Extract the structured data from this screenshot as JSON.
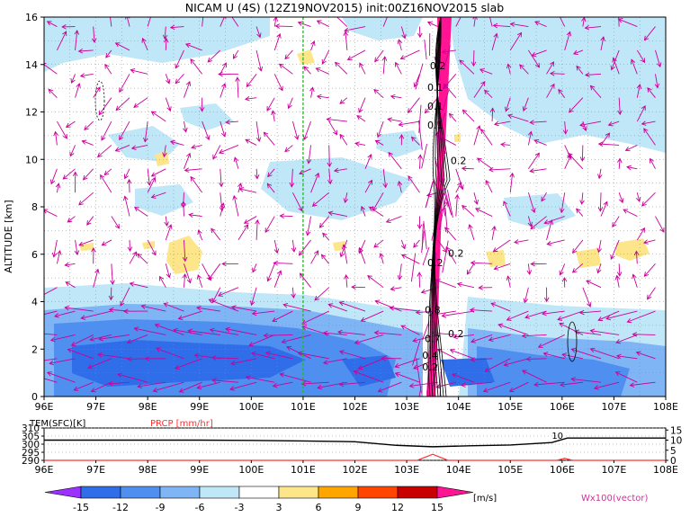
{
  "title": "NICAM U (4S) (12Z19NOV2015) init:00Z16NOV2015 slab",
  "chart_data": [
    {
      "type": "heatmap",
      "xlabel": "",
      "ylabel": "ALTITUDE [km]",
      "xlim": [
        96,
        108
      ],
      "ylim": [
        0,
        16
      ],
      "x_ticks": [
        "96E",
        "97E",
        "98E",
        "99E",
        "100E",
        "101E",
        "102E",
        "103E",
        "104E",
        "105E",
        "106E",
        "107E",
        "108E"
      ],
      "y_ticks": [
        "0",
        "2",
        "4",
        "6",
        "8",
        "10",
        "12",
        "14",
        "16"
      ],
      "grid": true,
      "marker_line_x": 101,
      "contour_labels": [
        {
          "text": "0.2",
          "x": 103.6,
          "y": 13.8
        },
        {
          "text": "0.1",
          "x": 103.55,
          "y": 12.9
        },
        {
          "text": "0.1",
          "x": 103.55,
          "y": 12.1
        },
        {
          "text": "0.1",
          "x": 103.55,
          "y": 11.3
        },
        {
          "text": "0.2",
          "x": 104.0,
          "y": 9.8
        },
        {
          "text": "0.2",
          "x": 103.55,
          "y": 5.5
        },
        {
          "text": "0.2",
          "x": 103.95,
          "y": 5.9
        },
        {
          "text": "0.8",
          "x": 103.5,
          "y": 3.5
        },
        {
          "text": "0.7",
          "x": 103.5,
          "y": 2.3
        },
        {
          "text": "0.2",
          "x": 103.95,
          "y": 2.5
        },
        {
          "text": "0.4",
          "x": 103.45,
          "y": 1.6
        },
        {
          "text": "0.2",
          "x": 103.45,
          "y": 1.1
        }
      ]
    },
    {
      "type": "line",
      "series": [
        {
          "name": "TEM(SFC)[K]",
          "color": "#000000",
          "x": [
            96,
            99,
            100,
            101,
            102,
            102.8,
            103.5,
            104.2,
            105,
            105.8,
            106.1,
            108
          ],
          "values": [
            302.5,
            302.5,
            302.3,
            302.0,
            301.5,
            299.3,
            298.4,
            299.0,
            299.5,
            301.0,
            303.8,
            303.8
          ]
        },
        {
          "name": "PRCP [mm/hr]",
          "color": "#ff3030",
          "x": [
            96,
            103.2,
            103.5,
            103.8,
            105.9,
            106.05,
            106.2,
            108
          ],
          "values": [
            0,
            0,
            3,
            0,
            0,
            1,
            0,
            0
          ]
        }
      ],
      "xlim": [
        96,
        108
      ],
      "left_ticks": [
        "290",
        "295",
        "300",
        "305",
        "310"
      ],
      "left_ylim": [
        290,
        310
      ],
      "right_ticks": [
        "0",
        "5",
        "10",
        "15"
      ],
      "right_ylim": [
        0,
        16
      ],
      "x_ticks": [
        "96E",
        "97E",
        "98E",
        "99E",
        "100E",
        "101E",
        "102E",
        "103E",
        "104E",
        "105E",
        "106E",
        "107E",
        "108E"
      ],
      "annotation": "10"
    }
  ],
  "colorbar": {
    "levels": [
      "-15",
      "-12",
      "-9",
      "-6",
      "-3",
      "3",
      "6",
      "9",
      "12",
      "15"
    ],
    "colors": [
      "#9b30ff",
      "#2f6ee8",
      "#4f8ff0",
      "#7fb4f5",
      "#bfe7f7",
      "#ffffff",
      "#fde58a",
      "#ffa500",
      "#ff4500",
      "#c80000",
      "#ff1493"
    ],
    "unit": "[m/s]",
    "vector_label": "Wx100(vector)"
  }
}
